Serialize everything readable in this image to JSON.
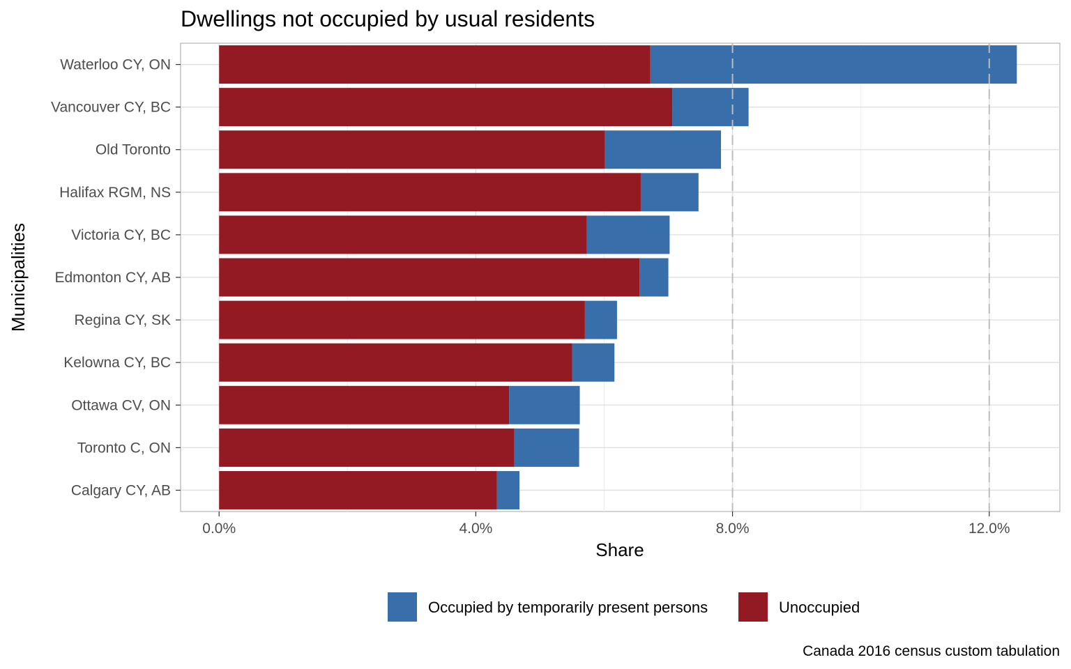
{
  "chart_data": {
    "type": "bar",
    "orientation": "horizontal",
    "stacked": true,
    "title": "Dwellings not occupied by usual residents",
    "xlabel": "Share",
    "ylabel": "Municipalities",
    "caption": "Canada 2016 census custom tabulation",
    "xlim": [
      -0.006,
      0.131
    ],
    "x_ticks": [
      0.0,
      0.04,
      0.08,
      0.12
    ],
    "x_tick_labels": [
      "0.0%",
      "4.0%",
      "8.0%",
      "12.0%"
    ],
    "dashed_reference_lines": [
      0.08,
      0.12
    ],
    "legend_position": "bottom",
    "categories": [
      "Waterloo CY, ON",
      "Vancouver CY, BC",
      "Old Toronto",
      "Halifax RGM, NS",
      "Victoria CY, BC",
      "Edmonton CY, AB",
      "Regina CY, SK",
      "Kelowna CY, BC",
      "Ottawa CV, ON",
      "Toronto C, ON",
      "Calgary CY, AB"
    ],
    "series": [
      {
        "name": "Unoccupied",
        "color": "#931a23",
        "values": [
          0.0672,
          0.0706,
          0.0601,
          0.0657,
          0.0573,
          0.0655,
          0.057,
          0.055,
          0.0452,
          0.046,
          0.0433
        ]
      },
      {
        "name": "Occupied by temporarily present persons",
        "color": "#386ea9",
        "values": [
          0.0571,
          0.0119,
          0.0181,
          0.009,
          0.0129,
          0.0045,
          0.005,
          0.0066,
          0.011,
          0.0101,
          0.0035
        ]
      }
    ],
    "legend": [
      {
        "label": "Occupied by temporarily present persons",
        "color": "#386ea9"
      },
      {
        "label": "Unoccupied",
        "color": "#931a23"
      }
    ]
  }
}
